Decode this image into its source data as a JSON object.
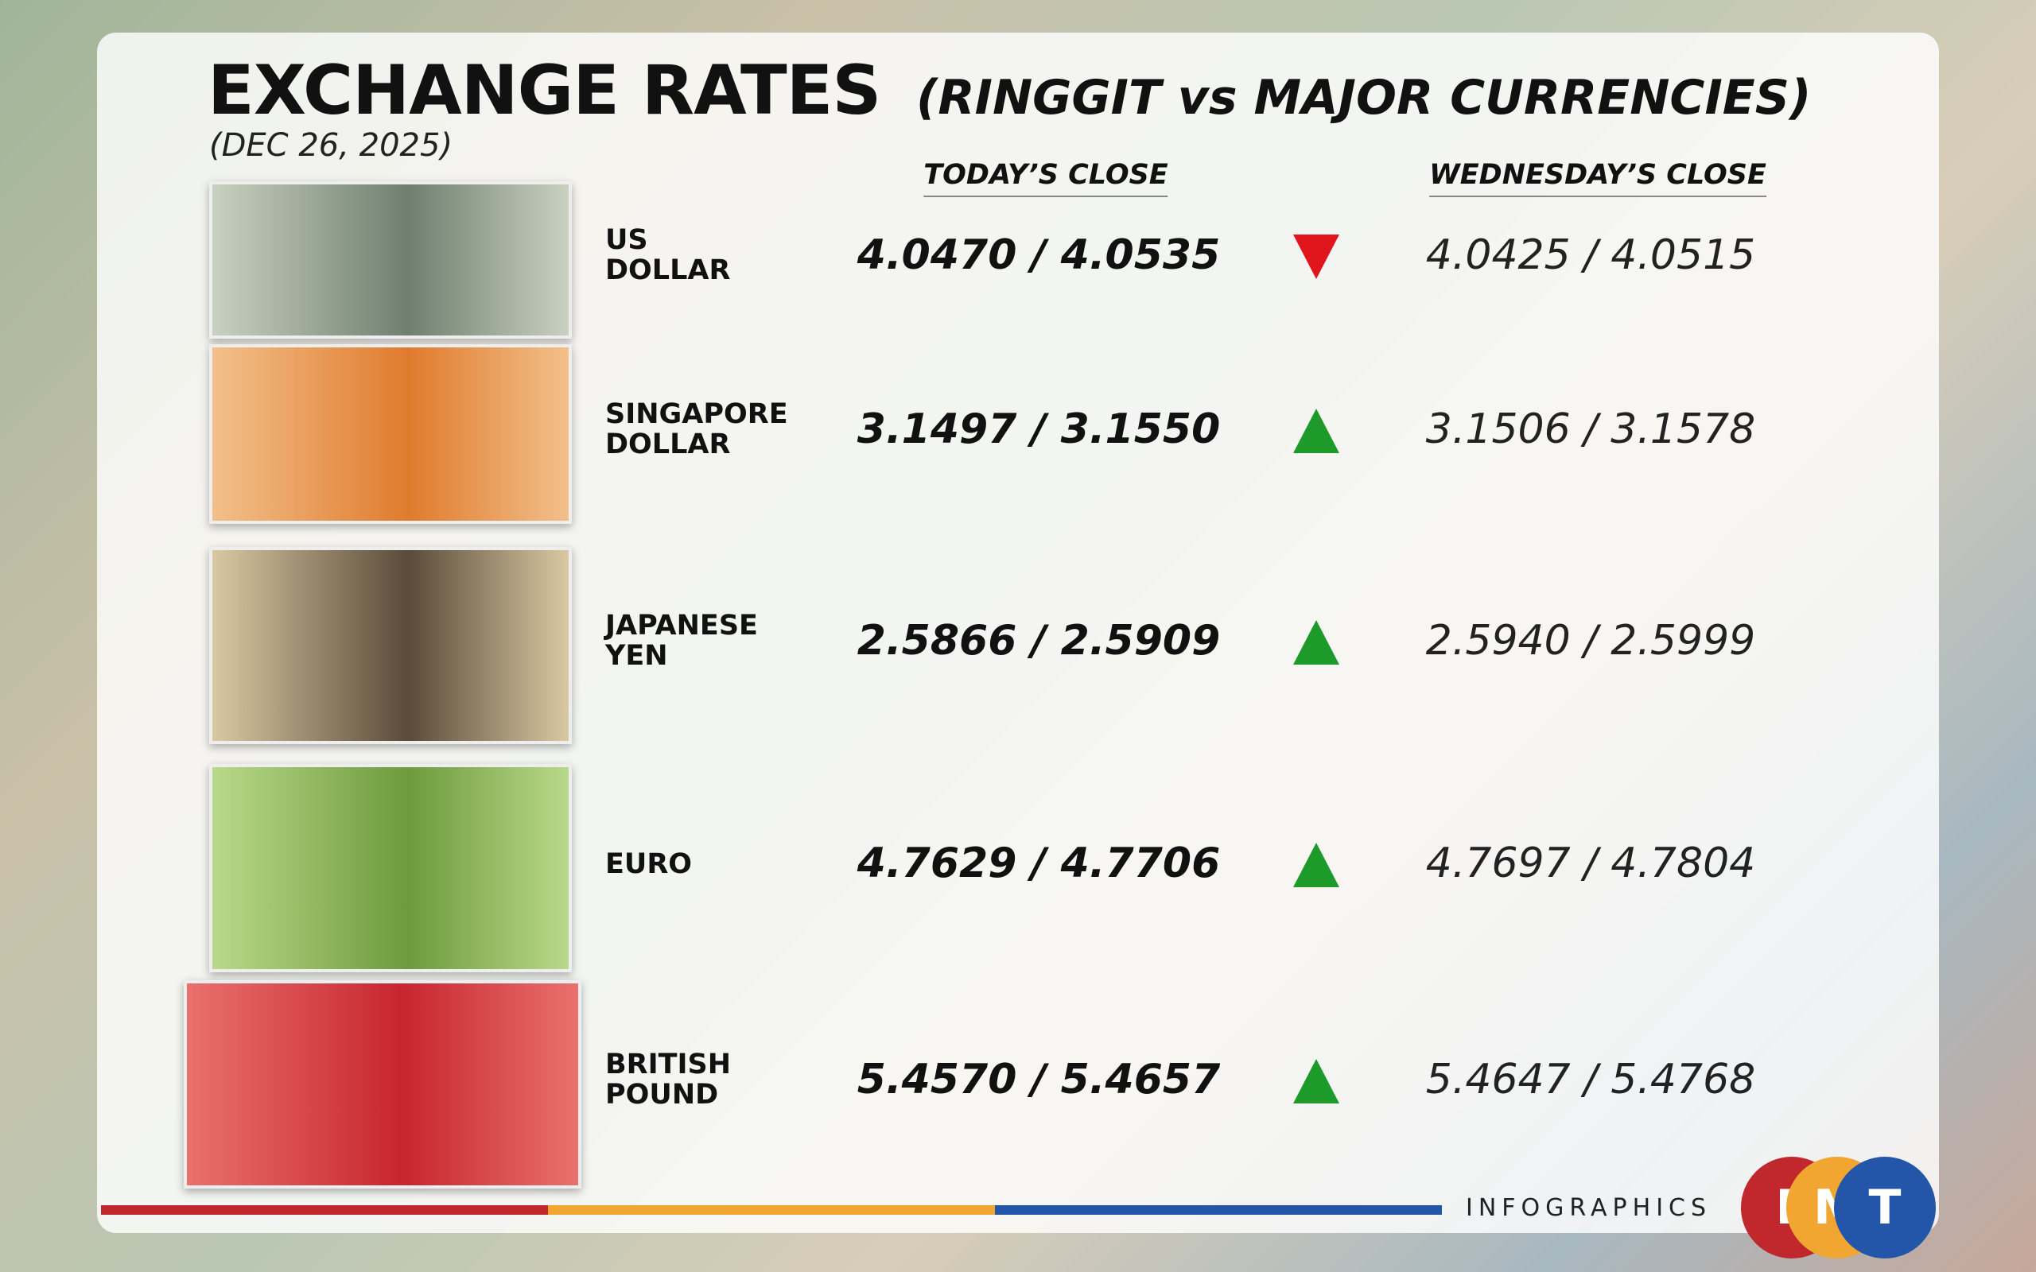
{
  "header": {
    "title": "EXCHANGE RATES",
    "subtitle": "(RINGGIT vs MAJOR CURRENCIES)",
    "date": "(DEC 26, 2025)"
  },
  "columns": {
    "today": "TODAY’S CLOSE",
    "previous": "WEDNESDAY’S CLOSE"
  },
  "rows": [
    {
      "currency": [
        "US",
        "DOLLAR"
      ],
      "today": "4.0470 / 4.0535",
      "trend": "down",
      "previous": "4.0425 / 4.0515"
    },
    {
      "currency": [
        "SINGAPORE",
        "DOLLAR"
      ],
      "today": "3.1497 / 3.1550",
      "trend": "up",
      "previous": "3.1506 / 3.1578"
    },
    {
      "currency": [
        "JAPANESE",
        "YEN"
      ],
      "today": "2.5866 / 2.5909",
      "trend": "up",
      "previous": "2.5940 / 2.5999"
    },
    {
      "currency": [
        "EURO"
      ],
      "today": "4.7629 / 4.7706",
      "trend": "up",
      "previous": "4.7697 / 4.7804"
    },
    {
      "currency": [
        "BRITISH",
        "POUND"
      ],
      "today": "5.4570 / 5.4657",
      "trend": "up",
      "previous": "5.4647 / 5.4768"
    }
  ],
  "footer": {
    "label": "INFOGRAPHICS",
    "logo": [
      "F",
      "M",
      "T"
    ]
  }
}
